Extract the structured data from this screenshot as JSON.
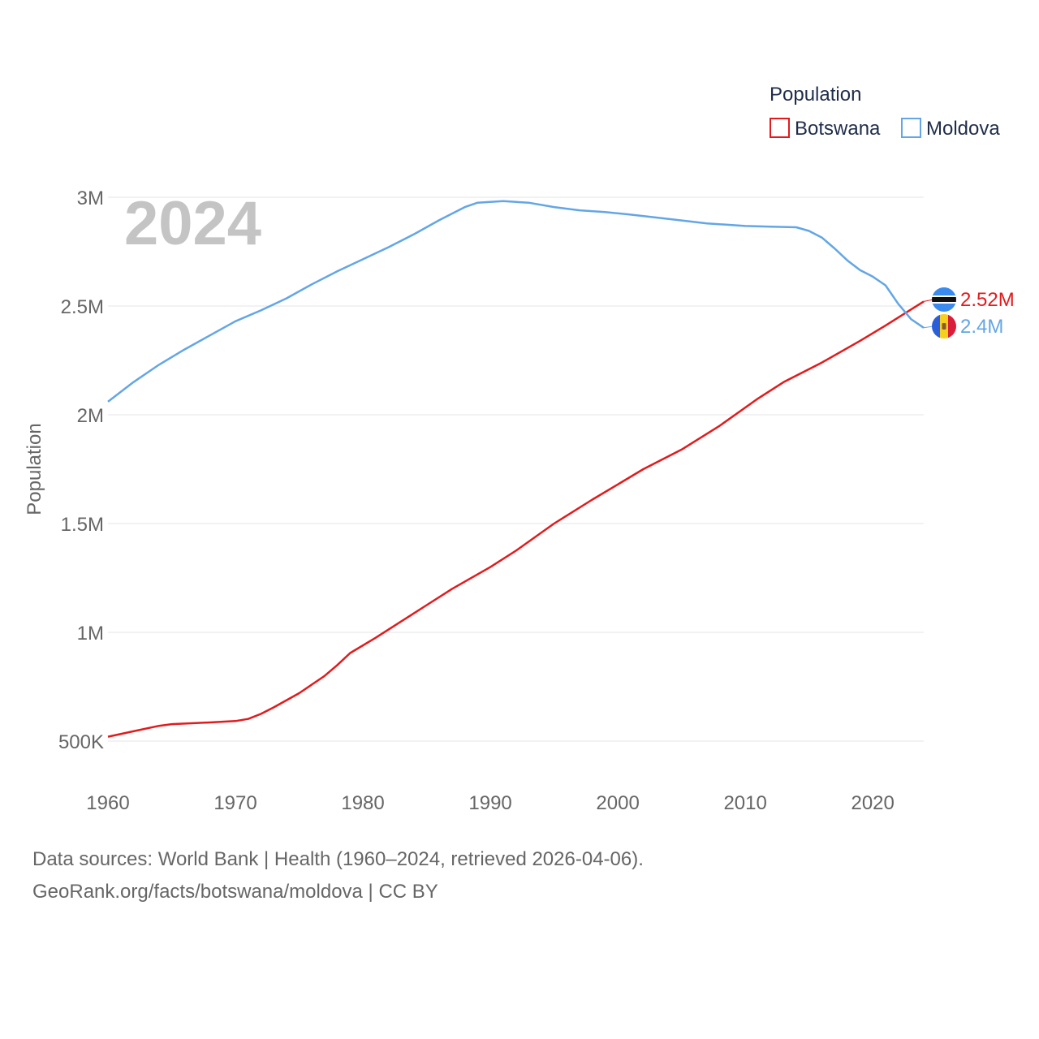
{
  "chart_data": {
    "type": "line",
    "year_label": "2024",
    "ylabel": "Population",
    "xlabel": "",
    "xlim": [
      1960,
      2024
    ],
    "ylim": [
      300000,
      3050000
    ],
    "x_ticks": [
      {
        "value": 1960,
        "label": "1960"
      },
      {
        "value": 1970,
        "label": "1970"
      },
      {
        "value": 1980,
        "label": "1980"
      },
      {
        "value": 1990,
        "label": "1990"
      },
      {
        "value": 2000,
        "label": "2000"
      },
      {
        "value": 2010,
        "label": "2010"
      },
      {
        "value": 2020,
        "label": "2020"
      }
    ],
    "y_ticks": [
      {
        "value": 500000,
        "label": "500K"
      },
      {
        "value": 1000000,
        "label": "1M"
      },
      {
        "value": 1500000,
        "label": "1.5M"
      },
      {
        "value": 2000000,
        "label": "2M"
      },
      {
        "value": 2500000,
        "label": "2.5M"
      },
      {
        "value": 3000000,
        "label": "3M"
      }
    ],
    "grid": true,
    "legend": {
      "title": "Population",
      "position": "top-right"
    },
    "series": [
      {
        "name": "Botswana",
        "color": "#e31a1c",
        "end_label": "2.52M",
        "flag": "botswana-flag",
        "points": [
          [
            1960,
            520000
          ],
          [
            1962,
            545000
          ],
          [
            1964,
            570000
          ],
          [
            1965,
            578000
          ],
          [
            1968,
            586000
          ],
          [
            1970,
            592000
          ],
          [
            1971,
            602000
          ],
          [
            1972,
            625000
          ],
          [
            1973,
            655000
          ],
          [
            1975,
            720000
          ],
          [
            1977,
            800000
          ],
          [
            1978,
            850000
          ],
          [
            1979,
            905000
          ],
          [
            1981,
            975000
          ],
          [
            1983,
            1050000
          ],
          [
            1985,
            1125000
          ],
          [
            1987,
            1200000
          ],
          [
            1990,
            1300000
          ],
          [
            1992,
            1375000
          ],
          [
            1995,
            1500000
          ],
          [
            1998,
            1610000
          ],
          [
            2000,
            1680000
          ],
          [
            2002,
            1750000
          ],
          [
            2005,
            1840000
          ],
          [
            2008,
            1950000
          ],
          [
            2011,
            2075000
          ],
          [
            2013,
            2150000
          ],
          [
            2016,
            2240000
          ],
          [
            2019,
            2340000
          ],
          [
            2021,
            2410000
          ],
          [
            2024,
            2521000
          ]
        ]
      },
      {
        "name": "Moldova",
        "color": "#63a6e5",
        "end_label": "2.4M",
        "flag": "moldova-flag",
        "points": [
          [
            1960,
            2060000
          ],
          [
            1962,
            2150000
          ],
          [
            1964,
            2230000
          ],
          [
            1966,
            2300000
          ],
          [
            1968,
            2365000
          ],
          [
            1970,
            2430000
          ],
          [
            1972,
            2480000
          ],
          [
            1974,
            2535000
          ],
          [
            1976,
            2600000
          ],
          [
            1978,
            2660000
          ],
          [
            1980,
            2715000
          ],
          [
            1982,
            2770000
          ],
          [
            1984,
            2830000
          ],
          [
            1986,
            2895000
          ],
          [
            1988,
            2955000
          ],
          [
            1989,
            2975000
          ],
          [
            1991,
            2982000
          ],
          [
            1993,
            2975000
          ],
          [
            1995,
            2955000
          ],
          [
            1997,
            2940000
          ],
          [
            1999,
            2932000
          ],
          [
            2001,
            2920000
          ],
          [
            2004,
            2900000
          ],
          [
            2007,
            2880000
          ],
          [
            2010,
            2868000
          ],
          [
            2012,
            2865000
          ],
          [
            2014,
            2862000
          ],
          [
            2015,
            2845000
          ],
          [
            2016,
            2815000
          ],
          [
            2017,
            2765000
          ],
          [
            2018,
            2710000
          ],
          [
            2019,
            2665000
          ],
          [
            2020,
            2635000
          ],
          [
            2021,
            2595000
          ],
          [
            2022,
            2510000
          ],
          [
            2023,
            2440000
          ],
          [
            2024,
            2400000
          ]
        ]
      }
    ]
  },
  "footer": {
    "source_line": "Data sources: World Bank | Health (1960–2024, retrieved 2026-04-06).",
    "credit_line": "GeoRank.org/facts/botswana/moldova | CC BY"
  }
}
